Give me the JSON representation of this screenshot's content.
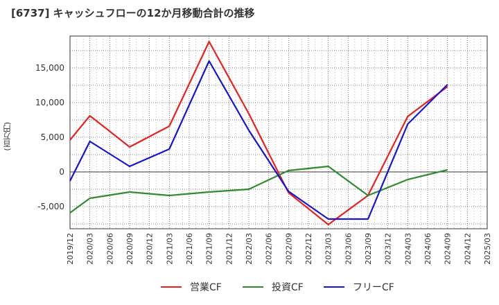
{
  "chart_data": {
    "type": "line",
    "title": "[6737]  キャッシュフローの12か月移動合計の推移",
    "ylabel": "(百万円)",
    "xlabel": "",
    "ylim": [
      -8200,
      19600
    ],
    "yticks": [
      -5000,
      0,
      5000,
      10000,
      15000
    ],
    "ytick_labels": [
      "-5,000",
      "0",
      "5,000",
      "10,000",
      "15,000"
    ],
    "x_ticks": [
      "2019/12",
      "2020/03",
      "2020/06",
      "2020/09",
      "2020/12",
      "2021/03",
      "2021/06",
      "2021/09",
      "2021/12",
      "2022/03",
      "2022/06",
      "2022/09",
      "2022/12",
      "2023/03",
      "2023/06",
      "2023/09",
      "2023/12",
      "2024/03",
      "2024/06",
      "2024/09",
      "2024/12",
      "2025/03"
    ],
    "grid": true,
    "legend_position": "bottom",
    "series": [
      {
        "name": "営業CF",
        "color": "#e8211e",
        "x": [
          "2019/12",
          "2020/03",
          "2020/09",
          "2021/03",
          "2021/09",
          "2022/03",
          "2022/09",
          "2023/03",
          "2023/09",
          "2024/03",
          "2024/09"
        ],
        "values": [
          4600,
          8100,
          3600,
          6600,
          18800,
          8400,
          -3000,
          -7600,
          -3400,
          8000,
          12300
        ]
      },
      {
        "name": "投資CF",
        "color": "#2e8b2e",
        "x": [
          "2019/12",
          "2020/03",
          "2020/09",
          "2021/03",
          "2021/09",
          "2022/03",
          "2022/09",
          "2023/03",
          "2023/09",
          "2024/03",
          "2024/09"
        ],
        "values": [
          -5900,
          -3800,
          -2900,
          -3400,
          -2900,
          -2500,
          200,
          800,
          -3400,
          -1100,
          300
        ]
      },
      {
        "name": "フリーCF",
        "color": "#1414d2",
        "x": [
          "2019/12",
          "2020/03",
          "2020/09",
          "2021/03",
          "2021/09",
          "2022/03",
          "2022/09",
          "2023/03",
          "2023/09",
          "2024/03",
          "2024/09"
        ],
        "values": [
          -1300,
          4400,
          800,
          3300,
          16000,
          6000,
          -2800,
          -6800,
          -6800,
          6900,
          12600
        ]
      }
    ]
  }
}
